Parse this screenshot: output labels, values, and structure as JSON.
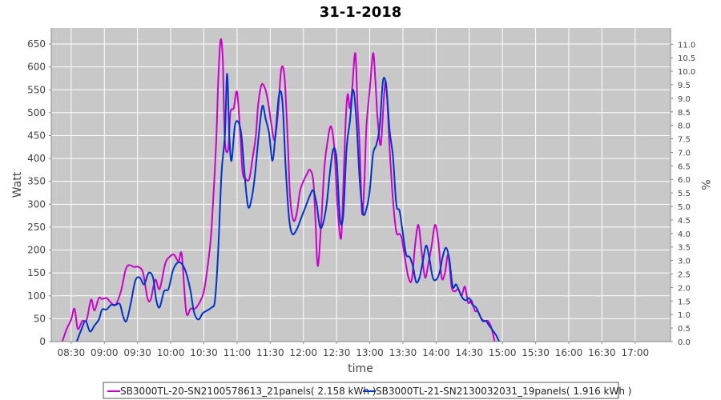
{
  "chart_data": {
    "type": "line",
    "title": "31-1-2018",
    "xlabel": "time",
    "ylabel": "Watt",
    "y2label": "%",
    "x_ticks": [
      "08:30",
      "09:00",
      "09:30",
      "10:00",
      "10:30",
      "11:00",
      "11:30",
      "12:00",
      "12:30",
      "13:00",
      "13:30",
      "14:00",
      "14:30",
      "15:00",
      "15:30",
      "16:00",
      "16:30",
      "17:00"
    ],
    "xlim": [
      "08:12",
      "17:32"
    ],
    "ylim": [
      0,
      685
    ],
    "y_ticks": [
      0,
      50,
      100,
      150,
      200,
      250,
      300,
      350,
      400,
      450,
      500,
      550,
      600,
      650
    ],
    "y2lim": [
      0,
      11.6
    ],
    "y2_ticks": [
      "0.0",
      "0.5",
      "1.0",
      "1.5",
      "2.0",
      "2.5",
      "3.0",
      "3.5",
      "4.0",
      "4.5",
      "5.0",
      "5.5",
      "6.0",
      "6.5",
      "7.0",
      "7.5",
      "8.0",
      "8.5",
      "9.0",
      "9.5",
      "10.0",
      "10.5",
      "11.0"
    ],
    "grid": true,
    "legend_position": "bottom",
    "background": "#c8c8c8",
    "series": [
      {
        "name": "SB3000TL-20-SN2100578613_21panels( 2.158 kWh )",
        "color": "#cc00cc",
        "points": [
          [
            "08:22",
            0
          ],
          [
            "08:26",
            28
          ],
          [
            "08:30",
            48
          ],
          [
            "08:33",
            72
          ],
          [
            "08:36",
            28
          ],
          [
            "08:40",
            45
          ],
          [
            "08:44",
            48
          ],
          [
            "08:48",
            92
          ],
          [
            "08:51",
            68
          ],
          [
            "08:55",
            95
          ],
          [
            "08:58",
            93
          ],
          [
            "09:02",
            95
          ],
          [
            "09:06",
            85
          ],
          [
            "09:10",
            80
          ],
          [
            "09:15",
            110
          ],
          [
            "09:19",
            155
          ],
          [
            "09:22",
            167
          ],
          [
            "09:27",
            163
          ],
          [
            "09:31",
            163
          ],
          [
            "09:35",
            150
          ],
          [
            "09:39",
            95
          ],
          [
            "09:42",
            92
          ],
          [
            "09:46",
            135
          ],
          [
            "09:50",
            115
          ],
          [
            "09:55",
            170
          ],
          [
            "09:59",
            185
          ],
          [
            "10:03",
            190
          ],
          [
            "10:07",
            175
          ],
          [
            "10:10",
            190
          ],
          [
            "10:14",
            65
          ],
          [
            "10:18",
            72
          ],
          [
            "10:22",
            72
          ],
          [
            "10:26",
            85
          ],
          [
            "10:30",
            110
          ],
          [
            "10:34",
            175
          ],
          [
            "10:37",
            250
          ],
          [
            "10:41",
            430
          ],
          [
            "10:43",
            570
          ],
          [
            "10:45",
            658
          ],
          [
            "10:47",
            620
          ],
          [
            "10:49",
            440
          ],
          [
            "10:52",
            420
          ],
          [
            "10:54",
            500
          ],
          [
            "10:57",
            510
          ],
          [
            "11:00",
            545
          ],
          [
            "11:03",
            450
          ],
          [
            "11:05",
            370
          ],
          [
            "11:08",
            355
          ],
          [
            "11:11",
            355
          ],
          [
            "11:14",
            400
          ],
          [
            "11:17",
            450
          ],
          [
            "11:19",
            515
          ],
          [
            "11:22",
            560
          ],
          [
            "11:25",
            555
          ],
          [
            "11:28",
            525
          ],
          [
            "11:31",
            475
          ],
          [
            "11:34",
            440
          ],
          [
            "11:37",
            500
          ],
          [
            "11:40",
            595
          ],
          [
            "11:43",
            575
          ],
          [
            "11:46",
            430
          ],
          [
            "11:48",
            315
          ],
          [
            "11:51",
            265
          ],
          [
            "11:54",
            280
          ],
          [
            "11:57",
            330
          ],
          [
            "12:00",
            350
          ],
          [
            "12:03",
            365
          ],
          [
            "12:06",
            375
          ],
          [
            "12:09",
            350
          ],
          [
            "12:11",
            260
          ],
          [
            "12:13",
            165
          ],
          [
            "12:16",
            255
          ],
          [
            "12:19",
            380
          ],
          [
            "12:22",
            440
          ],
          [
            "12:25",
            470
          ],
          [
            "12:28",
            420
          ],
          [
            "12:31",
            290
          ],
          [
            "12:34",
            225
          ],
          [
            "12:36",
            330
          ],
          [
            "12:38",
            470
          ],
          [
            "12:40",
            540
          ],
          [
            "12:42",
            510
          ],
          [
            "12:44",
            550
          ],
          [
            "12:47",
            630
          ],
          [
            "12:49",
            510
          ],
          [
            "12:51",
            420
          ],
          [
            "12:53",
            280
          ],
          [
            "12:55",
            340
          ],
          [
            "12:57",
            470
          ],
          [
            "13:00",
            550
          ],
          [
            "13:03",
            630
          ],
          [
            "13:05",
            575
          ],
          [
            "13:07",
            490
          ],
          [
            "13:10",
            430
          ],
          [
            "13:13",
            540
          ],
          [
            "13:15",
            560
          ],
          [
            "13:18",
            420
          ],
          [
            "13:21",
            310
          ],
          [
            "13:24",
            240
          ],
          [
            "13:27",
            235
          ],
          [
            "13:29",
            225
          ],
          [
            "13:32",
            180
          ],
          [
            "13:35",
            140
          ],
          [
            "13:38",
            135
          ],
          [
            "13:41",
            210
          ],
          [
            "13:44",
            255
          ],
          [
            "13:47",
            195
          ],
          [
            "13:50",
            140
          ],
          [
            "13:53",
            170
          ],
          [
            "13:56",
            210
          ],
          [
            "13:59",
            255
          ],
          [
            "14:02",
            220
          ],
          [
            "14:05",
            140
          ],
          [
            "14:08",
            150
          ],
          [
            "14:11",
            190
          ],
          [
            "14:14",
            120
          ],
          [
            "14:17",
            110
          ],
          [
            "14:20",
            115
          ],
          [
            "14:23",
            100
          ],
          [
            "14:26",
            120
          ],
          [
            "14:29",
            85
          ],
          [
            "14:32",
            90
          ],
          [
            "14:35",
            68
          ],
          [
            "14:38",
            65
          ],
          [
            "14:41",
            50
          ],
          [
            "14:44",
            45
          ],
          [
            "14:47",
            45
          ],
          [
            "14:50",
            30
          ],
          [
            "14:53",
            0
          ]
        ]
      },
      {
        "name": "SB3000TL-21-SN2130032031_19panels( 1.916 kWh )",
        "color": "#0033cc",
        "points": [
          [
            "08:35",
            0
          ],
          [
            "08:39",
            25
          ],
          [
            "08:43",
            45
          ],
          [
            "08:47",
            22
          ],
          [
            "08:51",
            35
          ],
          [
            "08:55",
            48
          ],
          [
            "08:58",
            70
          ],
          [
            "09:02",
            70
          ],
          [
            "09:06",
            80
          ],
          [
            "09:10",
            80
          ],
          [
            "09:14",
            82
          ],
          [
            "09:17",
            55
          ],
          [
            "09:20",
            45
          ],
          [
            "09:24",
            85
          ],
          [
            "09:28",
            133
          ],
          [
            "09:32",
            140
          ],
          [
            "09:36",
            125
          ],
          [
            "09:40",
            150
          ],
          [
            "09:44",
            140
          ],
          [
            "09:47",
            90
          ],
          [
            "09:50",
            75
          ],
          [
            "09:54",
            110
          ],
          [
            "09:58",
            115
          ],
          [
            "10:02",
            155
          ],
          [
            "10:06",
            172
          ],
          [
            "10:10",
            170
          ],
          [
            "10:14",
            150
          ],
          [
            "10:18",
            110
          ],
          [
            "10:21",
            65
          ],
          [
            "10:25",
            48
          ],
          [
            "10:29",
            62
          ],
          [
            "10:33",
            68
          ],
          [
            "10:37",
            75
          ],
          [
            "10:40",
            90
          ],
          [
            "10:43",
            200
          ],
          [
            "10:46",
            370
          ],
          [
            "10:49",
            450
          ],
          [
            "10:51",
            585
          ],
          [
            "10:53",
            450
          ],
          [
            "10:55",
            395
          ],
          [
            "10:58",
            470
          ],
          [
            "11:01",
            480
          ],
          [
            "11:04",
            450
          ],
          [
            "11:07",
            360
          ],
          [
            "11:10",
            295
          ],
          [
            "11:13",
            310
          ],
          [
            "11:16",
            360
          ],
          [
            "11:20",
            460
          ],
          [
            "11:23",
            515
          ],
          [
            "11:26",
            485
          ],
          [
            "11:29",
            455
          ],
          [
            "11:32",
            395
          ],
          [
            "11:35",
            460
          ],
          [
            "11:38",
            540
          ],
          [
            "11:41",
            525
          ],
          [
            "11:44",
            380
          ],
          [
            "11:47",
            270
          ],
          [
            "11:50",
            235
          ],
          [
            "11:54",
            245
          ],
          [
            "11:58",
            270
          ],
          [
            "12:02",
            295
          ],
          [
            "12:06",
            320
          ],
          [
            "12:09",
            330
          ],
          [
            "12:12",
            300
          ],
          [
            "12:15",
            250
          ],
          [
            "12:18",
            260
          ],
          [
            "12:21",
            300
          ],
          [
            "12:24",
            370
          ],
          [
            "12:27",
            420
          ],
          [
            "12:30",
            400
          ],
          [
            "12:33",
            270
          ],
          [
            "12:36",
            275
          ],
          [
            "12:39",
            420
          ],
          [
            "12:42",
            480
          ],
          [
            "12:45",
            550
          ],
          [
            "12:48",
            480
          ],
          [
            "12:51",
            350
          ],
          [
            "12:54",
            280
          ],
          [
            "12:57",
            290
          ],
          [
            "13:00",
            330
          ],
          [
            "13:03",
            410
          ],
          [
            "13:06",
            430
          ],
          [
            "13:09",
            470
          ],
          [
            "13:12",
            570
          ],
          [
            "13:15",
            555
          ],
          [
            "13:18",
            460
          ],
          [
            "13:21",
            405
          ],
          [
            "13:24",
            300
          ],
          [
            "13:27",
            285
          ],
          [
            "13:30",
            235
          ],
          [
            "13:33",
            190
          ],
          [
            "13:36",
            185
          ],
          [
            "13:39",
            165
          ],
          [
            "13:42",
            130
          ],
          [
            "13:45",
            140
          ],
          [
            "13:48",
            175
          ],
          [
            "13:51",
            210
          ],
          [
            "13:54",
            180
          ],
          [
            "13:57",
            140
          ],
          [
            "14:00",
            135
          ],
          [
            "14:03",
            150
          ],
          [
            "14:06",
            185
          ],
          [
            "14:09",
            205
          ],
          [
            "14:12",
            180
          ],
          [
            "14:15",
            120
          ],
          [
            "14:18",
            125
          ],
          [
            "14:21",
            110
          ],
          [
            "14:24",
            95
          ],
          [
            "14:27",
            90
          ],
          [
            "14:30",
            95
          ],
          [
            "14:33",
            80
          ],
          [
            "14:36",
            75
          ],
          [
            "14:39",
            60
          ],
          [
            "14:42",
            45
          ],
          [
            "14:45",
            45
          ],
          [
            "14:48",
            35
          ],
          [
            "14:51",
            25
          ],
          [
            "14:54",
            15
          ],
          [
            "14:57",
            0
          ]
        ]
      }
    ]
  }
}
